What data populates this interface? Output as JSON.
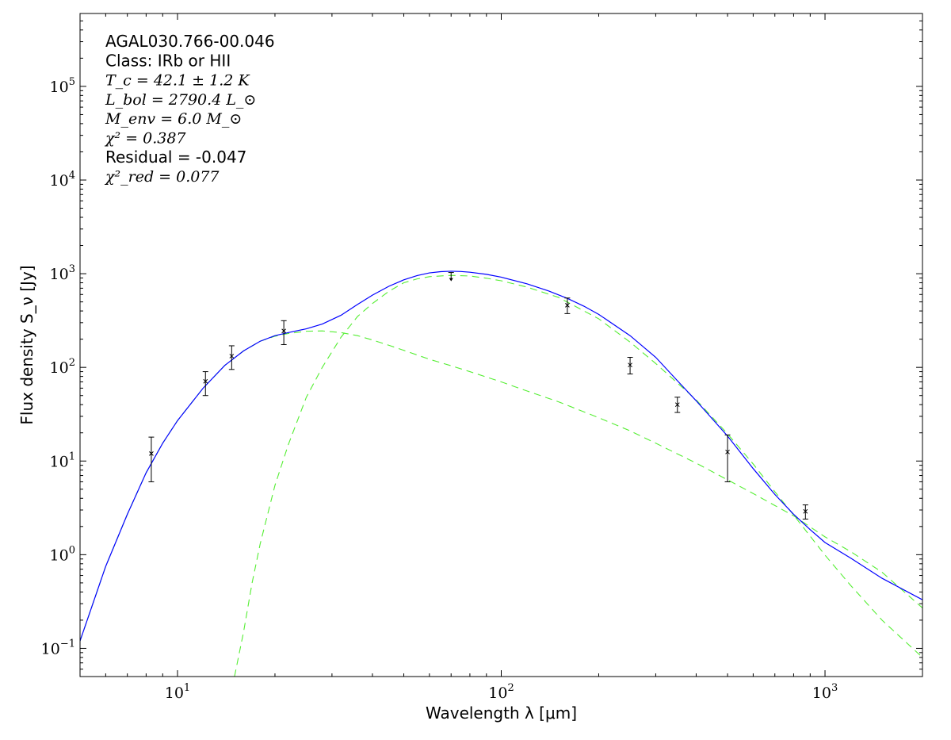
{
  "chart_data": {
    "type": "line",
    "xlabel": "Wavelength λ [μm]",
    "ylabel": "Flux density S_ν [Jy]",
    "xscale": "log",
    "yscale": "log",
    "xlim": [
      5,
      2000
    ],
    "ylim": [
      0.05,
      600000
    ],
    "x_tick_labels": [
      {
        "value": 10,
        "label": "10",
        "exp": "1"
      },
      {
        "value": 100,
        "label": "10",
        "exp": "2"
      },
      {
        "value": 1000,
        "label": "10",
        "exp": "3"
      }
    ],
    "y_tick_labels": [
      {
        "value": 0.1,
        "label": "10",
        "exp": "−1"
      },
      {
        "value": 1,
        "label": "10",
        "exp": "0"
      },
      {
        "value": 10,
        "label": "10",
        "exp": "1"
      },
      {
        "value": 100,
        "label": "10",
        "exp": "2"
      },
      {
        "value": 1000,
        "label": "10",
        "exp": "3"
      },
      {
        "value": 10000,
        "label": "10",
        "exp": "4"
      },
      {
        "value": 100000,
        "label": "10",
        "exp": "5"
      }
    ],
    "grid": false,
    "annotations": [
      {
        "text": "AGAL030.766-00.046",
        "style": "sans"
      },
      {
        "text": "Class: IRb or HII",
        "style": "sans"
      },
      {
        "text": "T_c = 42.1 ± 1.2 K",
        "style": "math"
      },
      {
        "text": "L_bol = 2790.4 L_⊙",
        "style": "math"
      },
      {
        "text": "M_env = 6.0 M_⊙",
        "style": "math"
      },
      {
        "text": "χ² = 0.387",
        "style": "math"
      },
      {
        "text": "Residual = -0.047",
        "style": "sans"
      },
      {
        "text": "χ²_red = 0.077",
        "style": "math"
      }
    ],
    "observations": [
      {
        "x": 8.3,
        "y": 12.0,
        "err_low": 6.0,
        "err_high": 18.0,
        "marker": "x"
      },
      {
        "x": 12.2,
        "y": 71.0,
        "err_low": 50.0,
        "err_high": 90.0,
        "marker": "x"
      },
      {
        "x": 14.7,
        "y": 132.0,
        "err_low": 95.0,
        "err_high": 170.0,
        "marker": "x"
      },
      {
        "x": 21.3,
        "y": 245.0,
        "err_low": 175.0,
        "err_high": 315.0,
        "marker": "x"
      },
      {
        "x": 70.0,
        "y": 1030.0,
        "upper_limit": true,
        "marker": "arrow"
      },
      {
        "x": 160.0,
        "y": 460.0,
        "err_low": 375.0,
        "err_high": 550.0,
        "marker": "x"
      },
      {
        "x": 250.0,
        "y": 106.0,
        "err_low": 85.0,
        "err_high": 128.0,
        "marker": "x"
      },
      {
        "x": 350.0,
        "y": 40.0,
        "err_low": 33.0,
        "err_high": 48.0,
        "marker": "x"
      },
      {
        "x": 500.0,
        "y": 12.5,
        "err_low": 6.0,
        "err_high": 19.0,
        "marker": "x"
      },
      {
        "x": 870.0,
        "y": 2.9,
        "err_low": 2.4,
        "err_high": 3.4,
        "marker": "x"
      }
    ],
    "series": [
      {
        "style": "solid",
        "color": "#0000ff",
        "x": [
          5,
          6,
          7,
          8,
          9,
          10,
          12,
          14,
          16,
          18,
          20,
          22,
          25,
          28,
          32,
          36,
          40,
          45,
          50,
          55,
          60,
          65,
          70,
          75,
          80,
          90,
          100,
          120,
          140,
          160,
          180,
          200,
          250,
          300,
          350,
          400,
          500,
          600,
          700,
          800,
          900,
          1000,
          1200,
          1500,
          2000
        ],
        "y": [
          0.12,
          0.75,
          2.7,
          7.5,
          15.5,
          27,
          60,
          105,
          150,
          190,
          218,
          235,
          258,
          290,
          360,
          470,
          590,
          735,
          860,
          955,
          1020,
          1052,
          1063,
          1055,
          1038,
          985,
          918,
          780,
          655,
          545,
          450,
          368,
          218,
          128,
          72,
          44,
          18.5,
          8.3,
          4.4,
          2.7,
          1.85,
          1.35,
          0.92,
          0.56,
          0.33
        ]
      },
      {
        "style": "dashed",
        "color": "#55ee33",
        "x": [
          5,
          6,
          7,
          8,
          9,
          10,
          12,
          14,
          16,
          18,
          20,
          22,
          25,
          28,
          32,
          36,
          40,
          45,
          50,
          60,
          70,
          80,
          100,
          120,
          150,
          200,
          250,
          300,
          400,
          500,
          600,
          700,
          800,
          1000,
          1200,
          1500,
          2000
        ],
        "y": [
          0.12,
          0.75,
          2.7,
          7.5,
          15.5,
          27,
          60,
          105,
          150,
          190,
          215,
          230,
          243,
          245,
          235,
          218,
          196,
          172,
          152,
          122,
          104,
          90,
          70,
          56,
          43,
          29,
          21,
          15.5,
          9.5,
          6.3,
          4.5,
          3.35,
          2.6,
          1.55,
          1.08,
          0.65,
          0.27
        ]
      },
      {
        "style": "dashed",
        "color": "#55ee33",
        "x": [
          15,
          16,
          17,
          18,
          20,
          22,
          25,
          28,
          32,
          36,
          40,
          45,
          50,
          55,
          60,
          70,
          80,
          90,
          100,
          120,
          150,
          200,
          250,
          300,
          400,
          500,
          600,
          700,
          800,
          1000,
          1200,
          1500,
          2000
        ],
        "y": [
          0.05,
          0.15,
          0.5,
          1.3,
          5.5,
          15,
          48,
          100,
          210,
          350,
          480,
          650,
          800,
          880,
          930,
          960,
          945,
          895,
          840,
          720,
          560,
          330,
          186,
          110,
          45,
          19.5,
          9.3,
          4.7,
          2.65,
          0.99,
          0.47,
          0.2,
          0.08
        ]
      }
    ]
  }
}
